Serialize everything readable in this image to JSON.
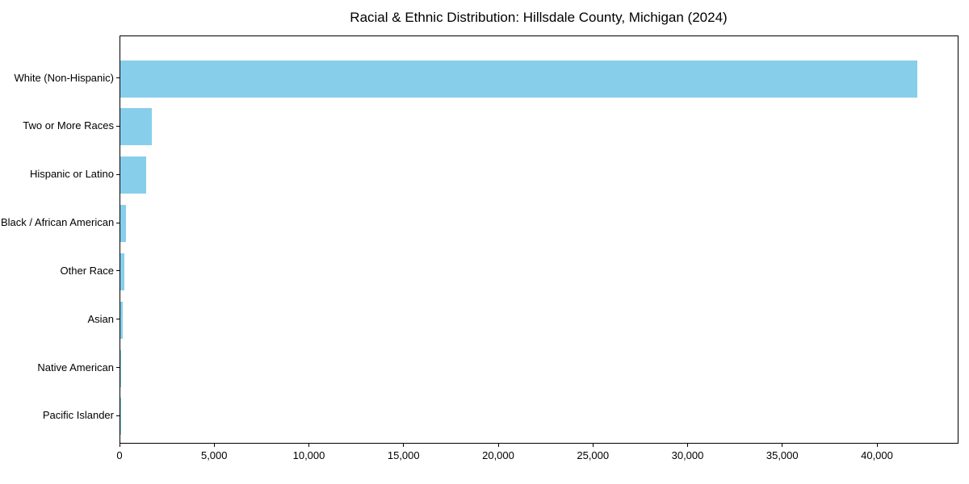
{
  "chart_data": {
    "type": "bar",
    "orientation": "horizontal",
    "title": "Racial & Ethnic Distribution: Hillsdale County, Michigan (2024)",
    "categories": [
      "White (Non-Hispanic)",
      "Two or More Races",
      "Hispanic or Latino",
      "Black / African American",
      "Other Race",
      "Asian",
      "Native American",
      "Pacific Islander"
    ],
    "values": [
      42100,
      1680,
      1380,
      310,
      215,
      130,
      45,
      12
    ],
    "xlabel": "",
    "ylabel": "",
    "xlim": [
      0,
      44260
    ],
    "x_ticks": {
      "values": [
        0,
        5000,
        10000,
        15000,
        20000,
        25000,
        30000,
        35000,
        40000
      ],
      "labels": [
        "0",
        "5,000",
        "10,000",
        "15,000",
        "20,000",
        "25,000",
        "30,000",
        "35,000",
        "40,000"
      ]
    },
    "grid": false,
    "legend_position": "none",
    "bar_color": "#87CEEB",
    "axis_color": "#000000",
    "background_color": "#ffffff"
  }
}
